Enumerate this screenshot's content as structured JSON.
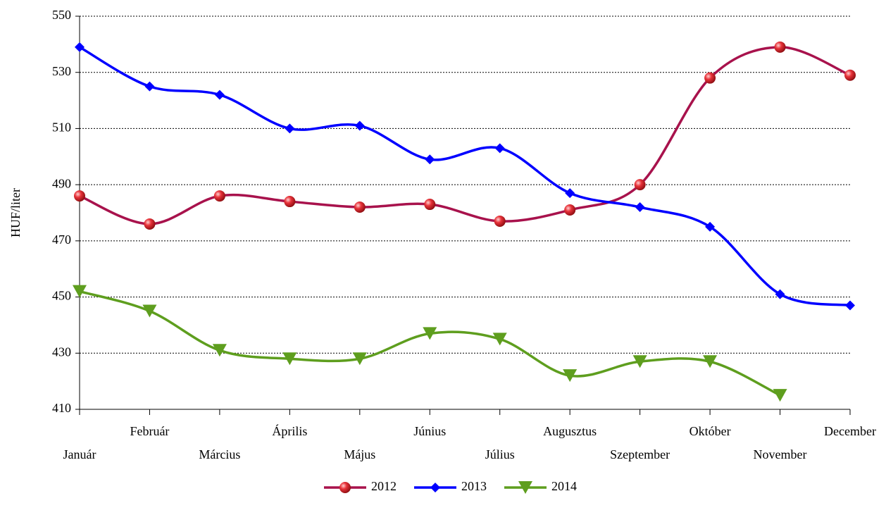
{
  "chart_data": {
    "type": "line",
    "y_label": "HUF/liter",
    "categories": [
      "Január",
      "Február",
      "Március",
      "Április",
      "Május",
      "Június",
      "Július",
      "Augusztus",
      "Szeptember",
      "Október",
      "November",
      "December"
    ],
    "series": [
      {
        "name": "2012",
        "color": "#a8124c",
        "marker": "circle",
        "values": [
          486,
          476,
          486,
          484,
          482,
          483,
          477,
          481,
          490,
          528,
          539,
          529
        ]
      },
      {
        "name": "2013",
        "color": "#0000ff",
        "marker": "diamond",
        "values": [
          539,
          525,
          522,
          510,
          511,
          499,
          503,
          487,
          482,
          475,
          451,
          447
        ]
      },
      {
        "name": "2014",
        "color": "#5e9e1e",
        "marker": "triangle-down",
        "values": [
          452,
          445,
          431,
          428,
          428,
          437,
          435,
          422,
          427,
          427,
          415,
          null
        ]
      }
    ],
    "ylim": [
      410,
      550
    ],
    "yticks": [
      410,
      430,
      450,
      470,
      490,
      510,
      530,
      550
    ],
    "grid": true,
    "smooth": true,
    "legend": "bottom"
  }
}
